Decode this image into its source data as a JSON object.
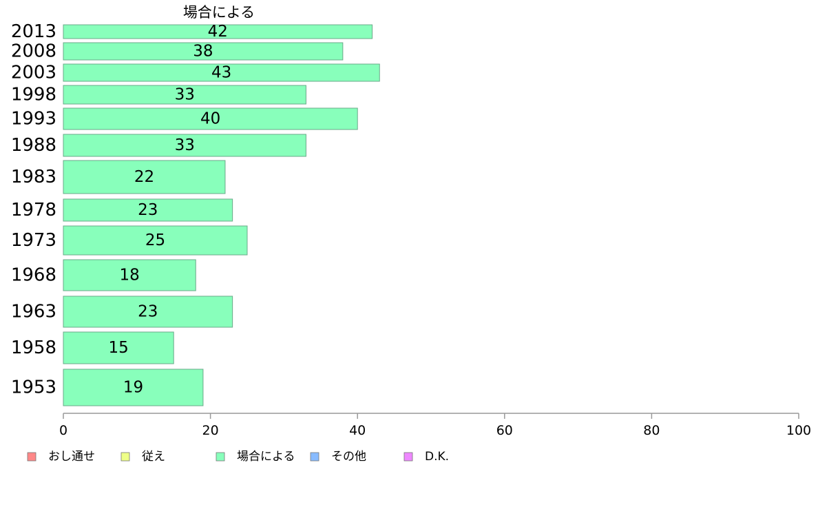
{
  "chart_data": {
    "type": "bar",
    "orientation": "horizontal",
    "title": "場合による",
    "categories": [
      "2013",
      "2008",
      "2003",
      "1998",
      "1993",
      "1988",
      "1983",
      "1978",
      "1973",
      "1968",
      "1963",
      "1958",
      "1953"
    ],
    "values": [
      42,
      38,
      43,
      33,
      40,
      33,
      22,
      23,
      25,
      18,
      23,
      15,
      19
    ],
    "value_labels": [
      "42",
      "38",
      "43",
      "33",
      "40",
      "33",
      "22",
      "23",
      "25",
      "18",
      "23",
      "15",
      "19"
    ],
    "xlim": [
      0,
      100
    ],
    "xticks": [
      "0",
      "20",
      "40",
      "60",
      "80",
      "100"
    ],
    "bar_color": "#88ffbb",
    "bar_stroke": "#6aa888",
    "grid": false,
    "legend": {
      "placement": "bottom",
      "items": [
        {
          "label": "おし通せ",
          "color": "#ff8888"
        },
        {
          "label": "従え",
          "color": "#eeff88"
        },
        {
          "label": "場合による",
          "color": "#88ffbb"
        },
        {
          "label": "その他",
          "color": "#88bbff"
        },
        {
          "label": "D.K.",
          "color": "#ee88ff"
        }
      ]
    }
  }
}
